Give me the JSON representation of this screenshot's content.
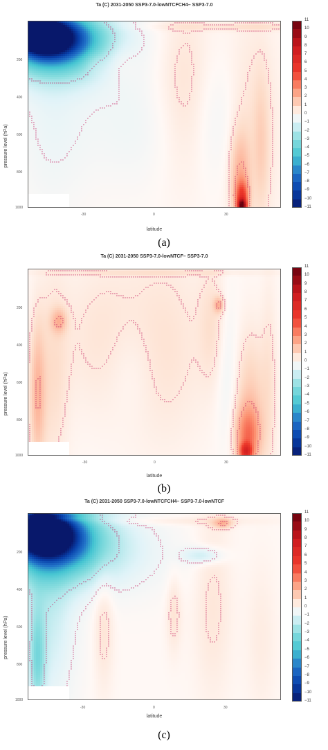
{
  "chart_data": [
    {
      "type": "heatmap",
      "title": "Ta (C) 2031-2050 SSP3-7.0-lowNTCFCH4– SSP3-7.0",
      "panel_label": "(a)",
      "xlabel": "latitude",
      "ylabel": "pressure level (hPa)",
      "xticks": [
        "-30",
        "0",
        "30"
      ],
      "yticks": [
        "200",
        "400",
        "600",
        "800",
        "1000"
      ],
      "colorbar": [
        "11",
        "10",
        "9",
        "8",
        "7",
        "6",
        "5",
        "4",
        "3",
        "2",
        "1",
        "0",
        "−1",
        "−2",
        "−3",
        "−4",
        "−5",
        "−6",
        "−7",
        "−8",
        "−9",
        "−10",
        "−11"
      ],
      "blobs": [
        {
          "lat": -60,
          "p": 130,
          "rx": 6,
          "ry": 45,
          "v": -11
        },
        {
          "lat": -58,
          "p": 140,
          "rx": 12,
          "ry": 80,
          "v": -8
        },
        {
          "lat": -55,
          "p": 150,
          "rx": 18,
          "ry": 110,
          "v": -6
        },
        {
          "lat": -52,
          "p": 180,
          "rx": 24,
          "ry": 150,
          "v": -4
        },
        {
          "lat": -48,
          "p": 200,
          "rx": 32,
          "ry": 180,
          "v": -2
        },
        {
          "lat": -44,
          "p": 150,
          "rx": 28,
          "ry": 90,
          "v": -1
        },
        {
          "lat": -53,
          "p": 500,
          "rx": 18,
          "ry": 520,
          "v": -0.6
        },
        {
          "lat": -10,
          "p": 580,
          "rx": 30,
          "ry": 300,
          "v": -0.5
        },
        {
          "lat": 33,
          "p": 560,
          "rx": 12,
          "ry": 340,
          "v": -0.5
        },
        {
          "lat": 50,
          "p": 100,
          "rx": 50,
          "ry": 20,
          "v": 0.6
        },
        {
          "lat": -32,
          "p": 270,
          "rx": 6,
          "ry": 60,
          "v": 0.7
        },
        {
          "lat": -19,
          "p": 260,
          "rx": 10,
          "ry": 110,
          "v": 0.7
        },
        {
          "lat": 15,
          "p": 420,
          "rx": 15,
          "ry": 450,
          "v": 0.8
        },
        {
          "lat": 50,
          "p": 600,
          "rx": 14,
          "ry": 550,
          "v": 0.7
        },
        {
          "lat": 44,
          "p": 850,
          "rx": 5,
          "ry": 230,
          "v": 1.8
        },
        {
          "lat": 45,
          "p": 950,
          "rx": 3,
          "ry": 80,
          "v": 4
        },
        {
          "lat": 45,
          "p": 990,
          "rx": 2,
          "ry": 30,
          "v": 8
        },
        {
          "lat": 55,
          "p": 700,
          "rx": 4,
          "ry": 350,
          "v": 0.8
        }
      ]
    },
    {
      "type": "heatmap",
      "title": "Ta (C) 2031-2050 SSP3-7.0-lowNTCF– SSP3-7.0",
      "panel_label": "(b)",
      "xlabel": "latitude",
      "ylabel": "pressure level (hPa)",
      "xticks": [
        "-30",
        "0",
        "30"
      ],
      "yticks": [
        "200",
        "400",
        "600",
        "800",
        "1000"
      ],
      "colorbar": [
        "11",
        "10",
        "9",
        "8",
        "7",
        "6",
        "5",
        "4",
        "3",
        "2",
        "1",
        "0",
        "−1",
        "−2",
        "−3",
        "−4",
        "−5",
        "−6",
        "−7",
        "−8",
        "−9",
        "−10",
        "−11"
      ],
      "blobs": [
        {
          "lat": -52,
          "p": 600,
          "rx": 8,
          "ry": 500,
          "v": 0.8
        },
        {
          "lat": -60,
          "p": 700,
          "rx": 4,
          "ry": 350,
          "v": 1.8
        },
        {
          "lat": -49,
          "p": 330,
          "rx": 4,
          "ry": 60,
          "v": 1.6
        },
        {
          "lat": -28,
          "p": 400,
          "rx": 20,
          "ry": 380,
          "v": 0.6
        },
        {
          "lat": 5,
          "p": 450,
          "rx": 22,
          "ry": 500,
          "v": 0.7
        },
        {
          "lat": 30,
          "p": 350,
          "rx": 7,
          "ry": 300,
          "v": 0.7
        },
        {
          "lat": 33,
          "p": 250,
          "rx": 2.5,
          "ry": 40,
          "v": 1.8
        },
        {
          "lat": 0,
          "p": 90,
          "rx": 60,
          "ry": 15,
          "v": 0.5
        },
        {
          "lat": -12,
          "p": 560,
          "rx": 12,
          "ry": 250,
          "v": -0.4
        },
        {
          "lat": 38,
          "p": 600,
          "rx": 6,
          "ry": 400,
          "v": -0.7
        },
        {
          "lat": 49,
          "p": 760,
          "rx": 9,
          "ry": 360,
          "v": 1.4
        },
        {
          "lat": 48,
          "p": 900,
          "rx": 6,
          "ry": 140,
          "v": 2.8
        },
        {
          "lat": 47,
          "p": 980,
          "rx": 3,
          "ry": 40,
          "v": 4.5
        },
        {
          "lat": 59,
          "p": 600,
          "rx": 4,
          "ry": 500,
          "v": 0.5
        }
      ]
    },
    {
      "type": "heatmap",
      "title": "Ta (C) 2031-2050 SSP3-7.0-lowNTCFCH4– SSP3-7.0-lowNTCF",
      "panel_label": "(c)",
      "xlabel": "latitude",
      "ylabel": "pressure level (hPa)",
      "xticks": [
        "-30",
        "0",
        "30"
      ],
      "yticks": [
        "200",
        "400",
        "600",
        "800",
        "1000"
      ],
      "colorbar": [
        "11",
        "10",
        "9",
        "8",
        "7",
        "6",
        "5",
        "4",
        "3",
        "2",
        "1",
        "0",
        "−1",
        "−2",
        "−3",
        "−4",
        "−5",
        "−6",
        "−7",
        "−8",
        "−9",
        "−10",
        "−11"
      ],
      "blobs": [
        {
          "lat": -60,
          "p": 150,
          "rx": 6,
          "ry": 55,
          "v": -11
        },
        {
          "lat": -58,
          "p": 160,
          "rx": 12,
          "ry": 90,
          "v": -8
        },
        {
          "lat": -55,
          "p": 180,
          "rx": 17,
          "ry": 120,
          "v": -6
        },
        {
          "lat": -52,
          "p": 200,
          "rx": 23,
          "ry": 160,
          "v": -4
        },
        {
          "lat": -49,
          "p": 220,
          "rx": 30,
          "ry": 190,
          "v": -2.5
        },
        {
          "lat": -55,
          "p": 500,
          "rx": 14,
          "ry": 520,
          "v": -1.6
        },
        {
          "lat": -60,
          "p": 800,
          "rx": 4,
          "ry": 250,
          "v": -2.5
        },
        {
          "lat": -30,
          "p": 280,
          "rx": 40,
          "ry": 200,
          "v": -0.8
        },
        {
          "lat": 25,
          "p": 280,
          "rx": 10,
          "ry": 40,
          "v": -1.5
        },
        {
          "lat": -26,
          "p": 600,
          "rx": 5,
          "ry": 350,
          "v": 0.7
        },
        {
          "lat": 10,
          "p": 560,
          "rx": 4,
          "ry": 200,
          "v": 0.7
        },
        {
          "lat": 30,
          "p": 500,
          "rx": 10,
          "ry": 500,
          "v": 0.6
        },
        {
          "lat": 35,
          "p": 120,
          "rx": 5,
          "ry": 25,
          "v": 1.8
        },
        {
          "lat": 0,
          "p": 110,
          "rx": 55,
          "ry": 20,
          "v": 0.5
        },
        {
          "lat": -62,
          "p": 100,
          "rx": 20,
          "ry": 10,
          "v": 2.5
        },
        {
          "lat": 55,
          "p": 700,
          "rx": 8,
          "ry": 400,
          "v": 0.4
        }
      ]
    }
  ]
}
